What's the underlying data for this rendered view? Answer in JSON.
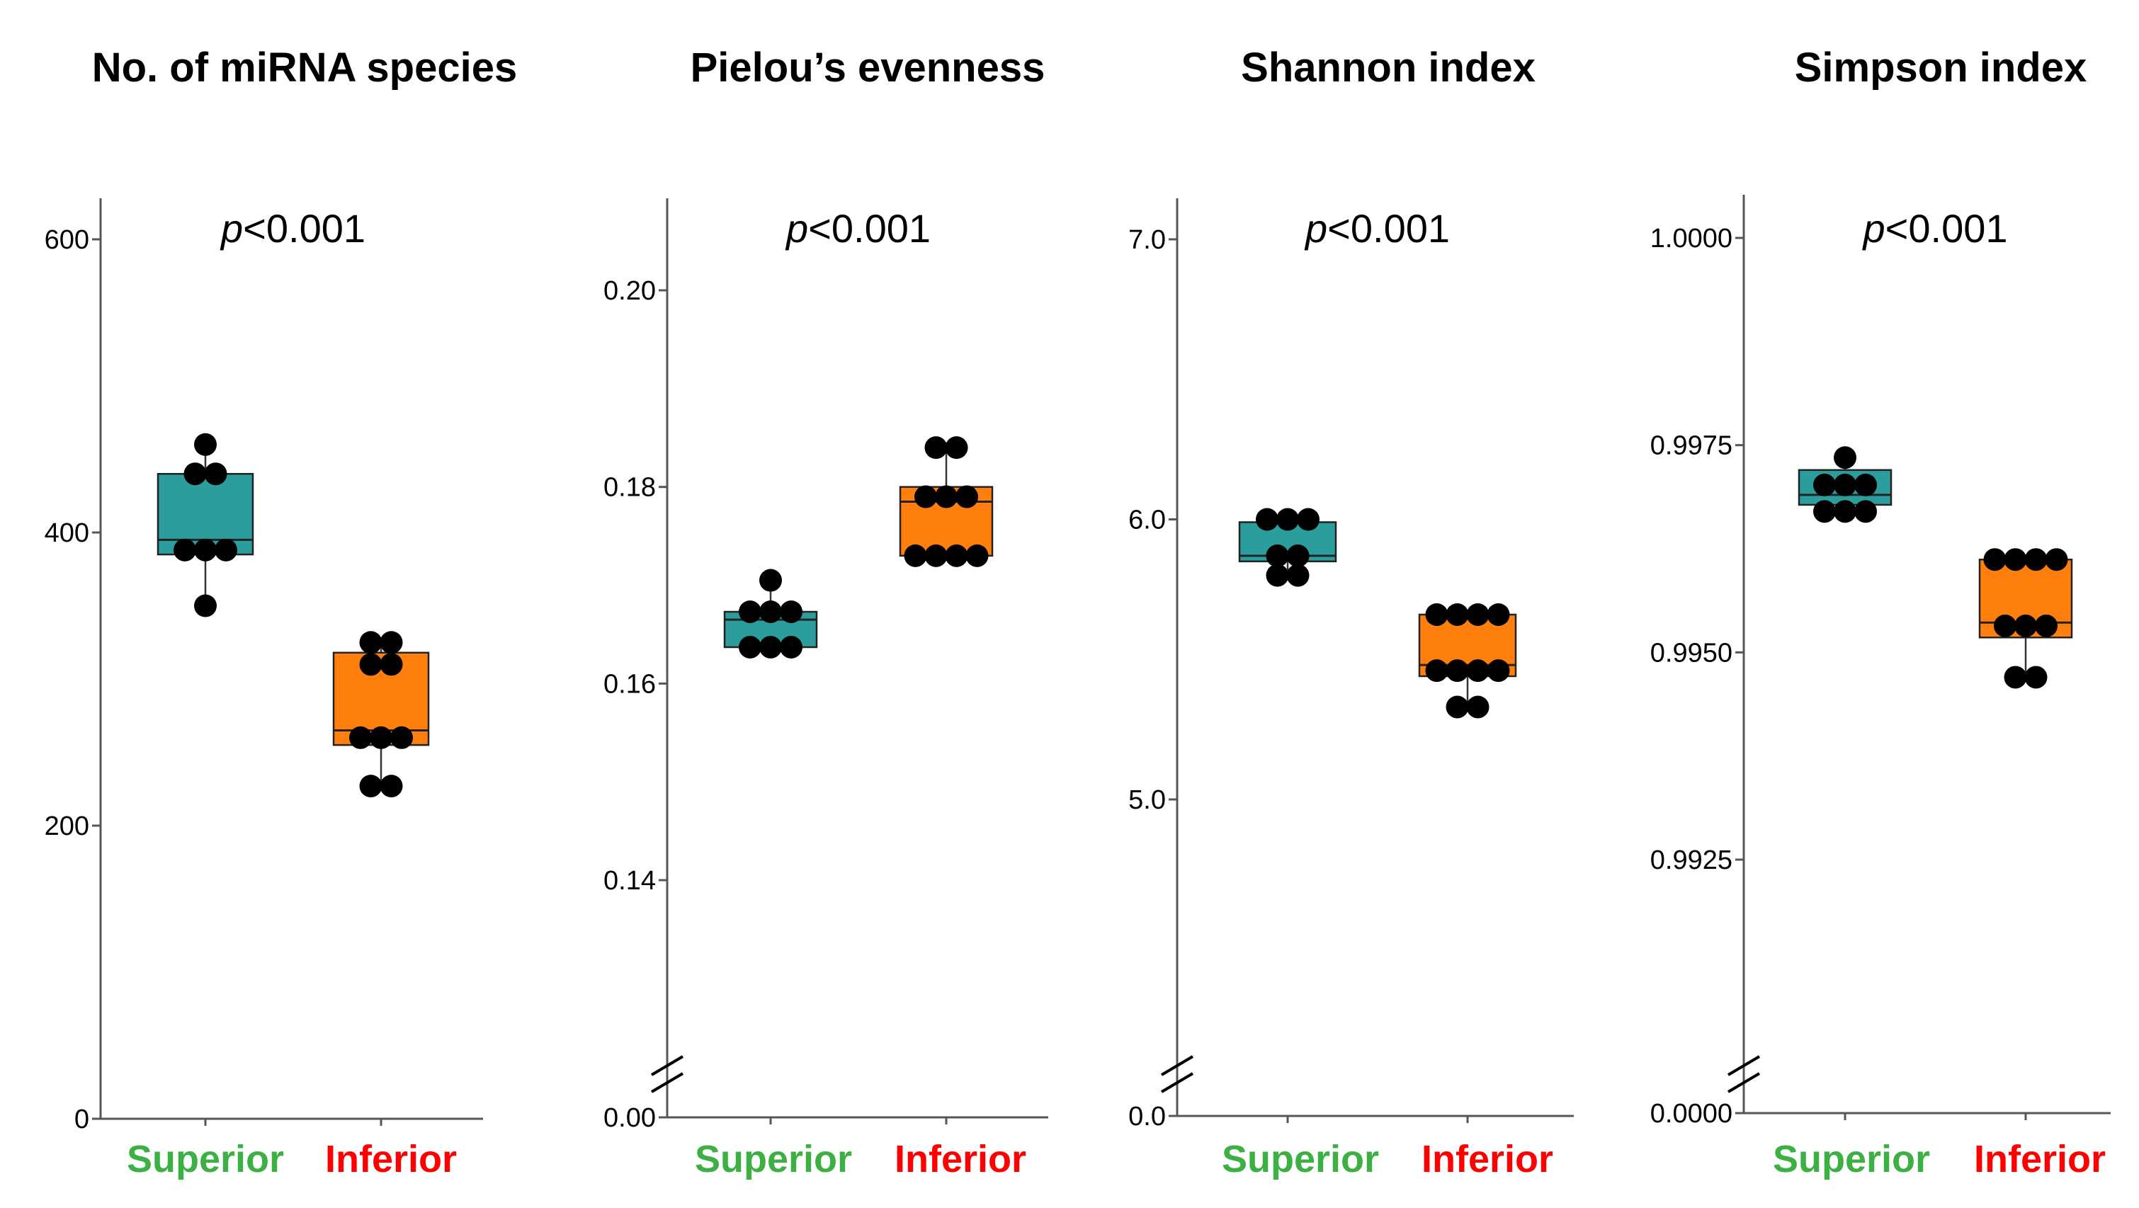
{
  "chart_data": [
    {
      "type": "box",
      "title": "No. of miRNA species",
      "p_value": "<0.001",
      "p_symbol": "p",
      "categories": [
        "Superior",
        "Inferior"
      ],
      "category_colors": [
        "#3cb043",
        "#ff0000"
      ],
      "ylim": [
        0,
        630
      ],
      "yticks": [
        0,
        200,
        400,
        600
      ],
      "ytick_labels": [
        "0",
        "200",
        "400",
        "600"
      ],
      "axis_break": false,
      "grid": false,
      "series": [
        {
          "name": "Superior",
          "color": "#2a9d9c",
          "q1": 385,
          "median": 395,
          "q3": 440,
          "whisker_low": 350,
          "whisker_high": 460,
          "points": [
            460,
            440,
            440,
            388,
            388,
            388,
            350
          ]
        },
        {
          "name": "Inferior",
          "color": "#ff7f0e",
          "q1": 255,
          "median": 265,
          "q3": 318,
          "whisker_low": 227,
          "whisker_high": 325,
          "points": [
            325,
            325,
            310,
            310,
            260,
            260,
            260,
            227,
            227
          ]
        }
      ]
    },
    {
      "type": "box",
      "title": "Pielou’s evenness",
      "p_value": "<0.001",
      "p_symbol": "p",
      "categories": [
        "Superior",
        "Inferior"
      ],
      "category_colors": [
        "#3cb043",
        "#ff0000"
      ],
      "ylim": [
        0.12,
        0.21
      ],
      "yticks": [
        0.14,
        0.16,
        0.18,
        0.2
      ],
      "ytick_labels": [
        "0.14",
        "0.16",
        "0.18",
        "0.20"
      ],
      "axis_break": true,
      "break_label": "0.00",
      "grid": false,
      "series": [
        {
          "name": "Superior",
          "color": "#2a9d9c",
          "q1": 0.1637,
          "median": 0.1665,
          "q3": 0.1673,
          "whisker_low": 0.1637,
          "whisker_high": 0.1705,
          "points": [
            0.1705,
            0.1673,
            0.1673,
            0.1673,
            0.1637,
            0.1637,
            0.1637
          ]
        },
        {
          "name": "Inferior",
          "color": "#ff7f0e",
          "q1": 0.173,
          "median": 0.1785,
          "q3": 0.18,
          "whisker_low": 0.173,
          "whisker_high": 0.184,
          "points": [
            0.184,
            0.184,
            0.179,
            0.179,
            0.179,
            0.173,
            0.173,
            0.173,
            0.173
          ]
        }
      ]
    },
    {
      "type": "box",
      "title": "Shannon index",
      "p_value": "<0.001",
      "p_symbol": "p",
      "categories": [
        "Superior",
        "Inferior"
      ],
      "category_colors": [
        "#3cb043",
        "#ff0000"
      ],
      "ylim": [
        4.0,
        7.15
      ],
      "yticks": [
        5.0,
        6.0,
        7.0
      ],
      "ytick_labels": [
        "5.0",
        "6.0",
        "7.0"
      ],
      "axis_break": true,
      "break_label": "0.0",
      "grid": false,
      "series": [
        {
          "name": "Superior",
          "color": "#2a9d9c",
          "q1": 5.85,
          "median": 5.87,
          "q3": 5.99,
          "whisker_low": 5.8,
          "whisker_high": 6.0,
          "points": [
            6.0,
            6.0,
            6.0,
            5.87,
            5.87,
            5.8,
            5.8
          ]
        },
        {
          "name": "Inferior",
          "color": "#ff7f0e",
          "q1": 5.44,
          "median": 5.48,
          "q3": 5.66,
          "whisker_low": 5.33,
          "whisker_high": 5.66,
          "points": [
            5.66,
            5.66,
            5.66,
            5.66,
            5.46,
            5.46,
            5.46,
            5.46,
            5.33,
            5.33
          ]
        }
      ]
    },
    {
      "type": "box",
      "title": "Simpson index",
      "p_value": "<0.001",
      "p_symbol": "p",
      "categories": [
        "Superior",
        "Inferior"
      ],
      "category_colors": [
        "#3cb043",
        "#ff0000"
      ],
      "ylim": [
        0.9905,
        1.0005
      ],
      "yticks": [
        0.9925,
        0.995,
        0.9975,
        1.0
      ],
      "ytick_labels": [
        "0.9925",
        "0.9950",
        "0.9975",
        "1.0000"
      ],
      "axis_break": true,
      "break_label": "0.0000",
      "grid": false,
      "series": [
        {
          "name": "Superior",
          "color": "#2a9d9c",
          "q1": 0.99678,
          "median": 0.9969,
          "q3": 0.9972,
          "whisker_low": 0.9967,
          "whisker_high": 0.99735,
          "points": [
            0.99735,
            0.99702,
            0.99702,
            0.99702,
            0.9967,
            0.9967,
            0.9967
          ]
        },
        {
          "name": "Inferior",
          "color": "#ff7f0e",
          "q1": 0.99518,
          "median": 0.99536,
          "q3": 0.99612,
          "whisker_low": 0.9947,
          "whisker_high": 0.99612,
          "points": [
            0.99612,
            0.99612,
            0.99612,
            0.99612,
            0.99532,
            0.99532,
            0.99532,
            0.9947,
            0.9947
          ]
        }
      ]
    }
  ]
}
